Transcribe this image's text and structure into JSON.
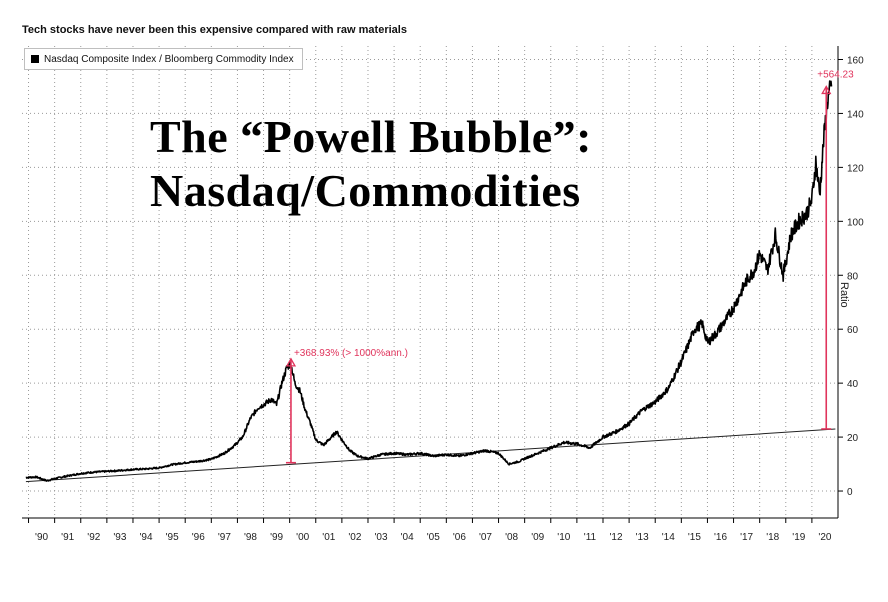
{
  "header": {
    "subtitle": "Tech stocks have never been this expensive compared with raw materials",
    "headline_line1": "The “Powell Bubble”:",
    "headline_line2": "Nasdaq/Commodities"
  },
  "legend": {
    "label": "Nasdaq Composite Index / Bloomberg Commodity Index"
  },
  "chart_data": {
    "type": "line",
    "ylabel": "Ratio",
    "ylim": [
      -10,
      165
    ],
    "y_ticks": [
      0,
      20,
      40,
      60,
      80,
      100,
      120,
      140,
      160
    ],
    "x_ticks": [
      "'90",
      "'91",
      "'92",
      "'93",
      "'94",
      "'95",
      "'96",
      "'97",
      "'98",
      "'99",
      "'00",
      "'01",
      "'02",
      "'03",
      "'04",
      "'05",
      "'06",
      "'07",
      "'08",
      "'09",
      "'10",
      "'11",
      "'12",
      "'13",
      "'14",
      "'15",
      "'16",
      "'17",
      "'18",
      "'19",
      "'20"
    ],
    "grid": true,
    "legend_position": "top-left",
    "series": [
      {
        "name": "Nasdaq Composite Index / Bloomberg Commodity Index",
        "color": "#000000",
        "points": [
          [
            1989.9,
            5.0
          ],
          [
            1990.3,
            5.2
          ],
          [
            1990.7,
            3.8
          ],
          [
            1991.0,
            4.6
          ],
          [
            1991.5,
            5.6
          ],
          [
            1992.0,
            6.5
          ],
          [
            1992.5,
            7.0
          ],
          [
            1993.0,
            7.3
          ],
          [
            1993.5,
            7.6
          ],
          [
            1994.0,
            8.0
          ],
          [
            1994.5,
            8.2
          ],
          [
            1995.0,
            8.6
          ],
          [
            1995.5,
            9.8
          ],
          [
            1996.0,
            10.5
          ],
          [
            1996.5,
            11.0
          ],
          [
            1997.0,
            11.8
          ],
          [
            1997.5,
            14.0
          ],
          [
            1997.9,
            17.0
          ],
          [
            1998.2,
            20.0
          ],
          [
            1998.5,
            27.0
          ],
          [
            1998.8,
            31.0
          ],
          [
            1999.0,
            32.0
          ],
          [
            1999.3,
            34.0
          ],
          [
            1999.5,
            32.0
          ],
          [
            1999.7,
            40.0
          ],
          [
            1999.9,
            46.0
          ],
          [
            2000.05,
            47.0
          ],
          [
            2000.2,
            40.0
          ],
          [
            2000.4,
            37.0
          ],
          [
            2000.6,
            30.0
          ],
          [
            2000.8,
            25.0
          ],
          [
            2001.0,
            19.0
          ],
          [
            2001.3,
            17.0
          ],
          [
            2001.6,
            20.0
          ],
          [
            2001.8,
            22.0
          ],
          [
            2002.0,
            19.0
          ],
          [
            2002.3,
            15.0
          ],
          [
            2002.6,
            13.0
          ],
          [
            2003.0,
            12.0
          ],
          [
            2003.5,
            13.5
          ],
          [
            2004.0,
            14.0
          ],
          [
            2004.5,
            13.5
          ],
          [
            2005.0,
            14.0
          ],
          [
            2005.5,
            13.0
          ],
          [
            2006.0,
            13.5
          ],
          [
            2006.5,
            13.0
          ],
          [
            2007.0,
            14.0
          ],
          [
            2007.5,
            15.0
          ],
          [
            2008.0,
            14.0
          ],
          [
            2008.4,
            10.0
          ],
          [
            2008.8,
            11.0
          ],
          [
            2009.0,
            12.0
          ],
          [
            2009.5,
            14.0
          ],
          [
            2010.0,
            16.0
          ],
          [
            2010.5,
            18.0
          ],
          [
            2011.0,
            17.5
          ],
          [
            2011.5,
            16.0
          ],
          [
            2012.0,
            20.0
          ],
          [
            2012.5,
            22.0
          ],
          [
            2013.0,
            25.0
          ],
          [
            2013.5,
            30.0
          ],
          [
            2014.0,
            33.0
          ],
          [
            2014.5,
            38.0
          ],
          [
            2015.0,
            48.0
          ],
          [
            2015.3,
            55.0
          ],
          [
            2015.5,
            60.0
          ],
          [
            2015.8,
            62.0
          ],
          [
            2016.0,
            55.0
          ],
          [
            2016.3,
            58.0
          ],
          [
            2016.6,
            62.0
          ],
          [
            2017.0,
            68.0
          ],
          [
            2017.5,
            78.0
          ],
          [
            2017.8,
            82.0
          ],
          [
            2018.0,
            88.0
          ],
          [
            2018.3,
            82.0
          ],
          [
            2018.6,
            95.0
          ],
          [
            2018.9,
            80.0
          ],
          [
            2019.2,
            95.0
          ],
          [
            2019.5,
            100.0
          ],
          [
            2019.8,
            103.0
          ],
          [
            2020.0,
            108.0
          ],
          [
            2020.15,
            122.0
          ],
          [
            2020.3,
            110.0
          ],
          [
            2020.45,
            130.0
          ],
          [
            2020.6,
            145.0
          ],
          [
            2020.75,
            150.0
          ]
        ]
      }
    ],
    "trend_line": {
      "start": [
        1989.9,
        3.5
      ],
      "end": [
        2020.9,
        23.0
      ]
    },
    "annotations": [
      {
        "label": "+368.93% (> 1000%ann.)",
        "x": 2000.05,
        "y_from": 10.5,
        "y_to": 49.0,
        "color": "#e0345c"
      },
      {
        "label": "+564.23",
        "x": 2020.55,
        "y_from": 23.0,
        "y_to": 150.0,
        "color": "#e0345c"
      }
    ]
  }
}
